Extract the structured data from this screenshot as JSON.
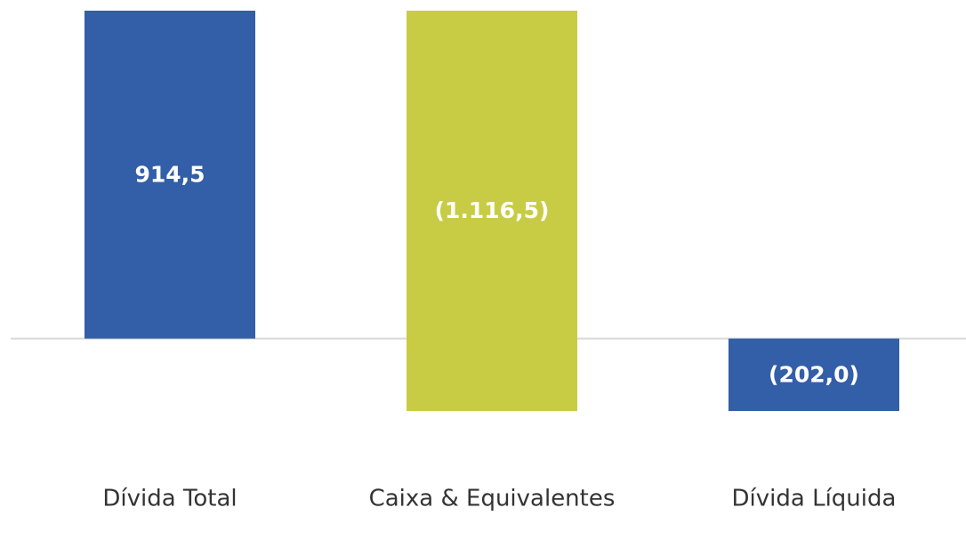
{
  "chart_data": {
    "type": "waterfall",
    "categories": [
      "Dívida Total",
      "Caixa & Equivalentes",
      "Dívida Líquida"
    ],
    "values": [
      914.5,
      -1116.5,
      -202
    ],
    "value_labels": [
      "914,5",
      "(1.116,5)",
      "(202,0)"
    ],
    "measures": [
      "absolute",
      "relative",
      "total"
    ],
    "colors": [
      "#335ea8",
      "#c8cc45",
      "#335ea8"
    ]
  }
}
